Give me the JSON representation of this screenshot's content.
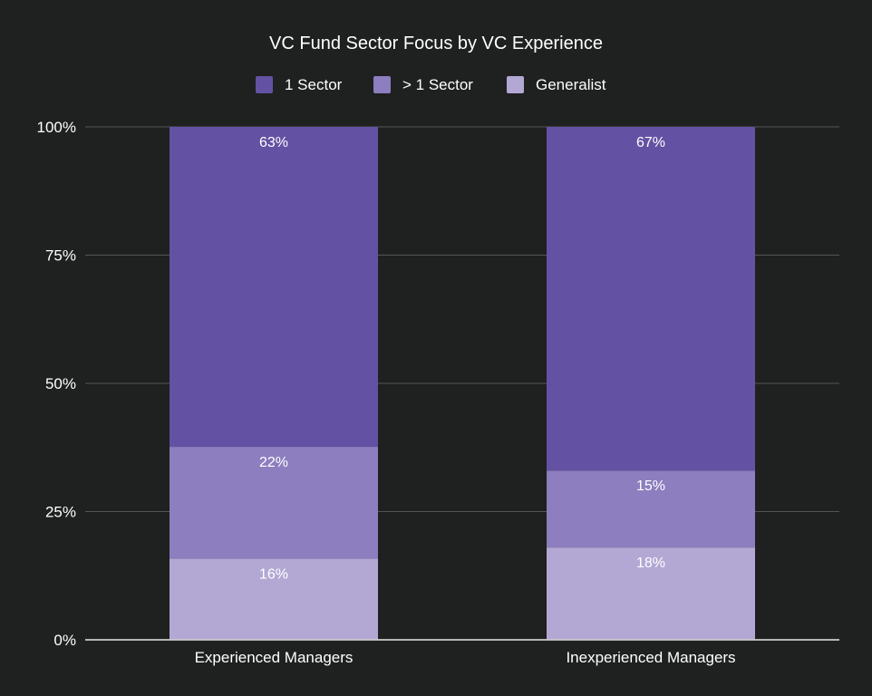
{
  "chart_data": {
    "type": "bar",
    "stacked": true,
    "percent_stacked": true,
    "title": "VC Fund Sector Focus by VC Experience",
    "xlabel": "",
    "ylabel": "",
    "ylim": [
      0,
      100
    ],
    "yticks": [
      0,
      25,
      50,
      75,
      100
    ],
    "ytick_labels": [
      "0%",
      "25%",
      "50%",
      "75%",
      "100%"
    ],
    "grid": true,
    "legend_position": "top-center",
    "categories": [
      "Experienced Managers",
      "Inexperienced Managers"
    ],
    "series": [
      {
        "name": "Generalist",
        "values": [
          16,
          18
        ],
        "labels": [
          "16%",
          "18%"
        ],
        "color": "#b3a8d4"
      },
      {
        "name": "> 1 Sector",
        "values": [
          22,
          15
        ],
        "labels": [
          "22%",
          "15%"
        ],
        "color": "#8c7ebf"
      },
      {
        "name": "1 Sector",
        "values": [
          63,
          67
        ],
        "labels": [
          "63%",
          "67%"
        ],
        "color": "#6351a3"
      }
    ],
    "legend_order": [
      "1 Sector",
      "> 1 Sector",
      "Generalist"
    ]
  },
  "colors": {
    "background": "#1f2020",
    "gridline": "#555555",
    "axis": "#cccccc",
    "text": "#ffffff"
  }
}
